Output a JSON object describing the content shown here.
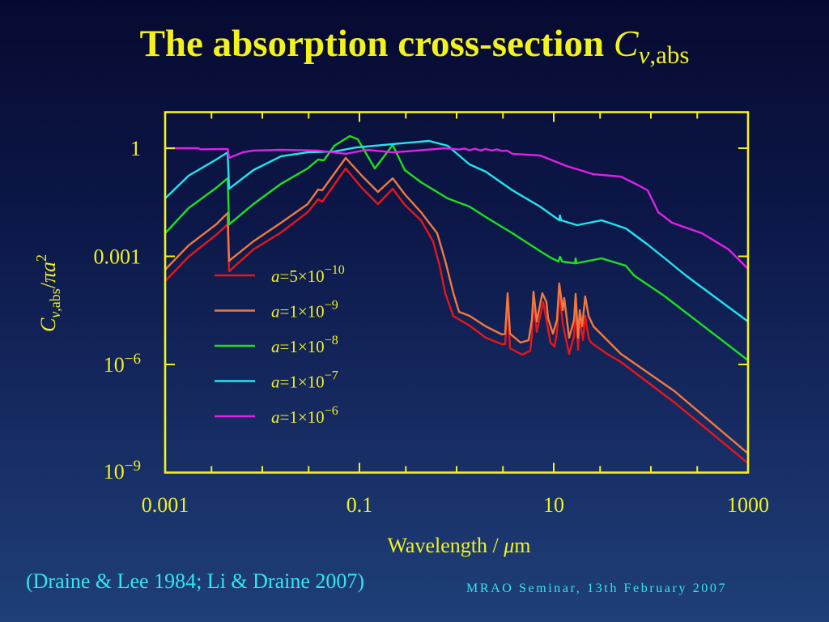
{
  "title": {
    "text": "The absorption cross-section",
    "symbol": "C",
    "subscript_greek": "ν",
    "subscript_rest": ",abs"
  },
  "citation": "(Draine & Lee 1984; Li & Draine 2007)",
  "footer": "MRAO Seminar, 13th February 2007",
  "colors": {
    "background_top": "#070a30",
    "background_bottom": "#1f3f78",
    "axes": "#f2f21e",
    "text": "#f2f21e",
    "citation": "#33e6f0"
  },
  "chart_data": {
    "type": "line",
    "title": "The absorption cross-section C_ν,abs",
    "xlabel": "Wavelength / μm",
    "xlabel_parts": {
      "text": "Wavelength / ",
      "greek": "μ",
      "unit": "m"
    },
    "ylabel": "C_ν,abs/πa^2",
    "ylabel_parts": {
      "symbol": "C",
      "sub_greek": "ν",
      "sub_rest": ",abs",
      "slash": "/",
      "pi_a": "πa",
      "sup": "2"
    },
    "xscale": "log",
    "yscale": "log",
    "xlim": [
      0.001,
      1000
    ],
    "ylim": [
      1e-09,
      10
    ],
    "grid": false,
    "legend_position": "center-left (inside plot)",
    "xticks_major": [
      0.001,
      0.1,
      10,
      1000
    ],
    "xticks_minor": [
      0.003,
      0.01,
      0.03,
      0.3,
      1,
      3,
      30,
      100,
      300
    ],
    "yticks": [
      1,
      0.001,
      1e-06
    ],
    "xtick_labels": [
      {
        "value": 0.001,
        "label": "0.001"
      },
      {
        "value": 0.1,
        "label": "0.1"
      },
      {
        "value": 10,
        "label": "10"
      },
      {
        "value": 1000,
        "label": "1000"
      }
    ],
    "ytick_labels": [
      {
        "value": 1,
        "base": "1",
        "exp": ""
      },
      {
        "value": 0.001,
        "base": "0.001",
        "exp": ""
      },
      {
        "value": 1e-06,
        "base": "10",
        "exp": "−6"
      },
      {
        "value": 1e-09,
        "base": "10",
        "exp": "−9"
      }
    ],
    "series": [
      {
        "name": "a=5×10^-10",
        "label_var": "a",
        "label_value": "=5×10",
        "label_exp": "−10",
        "color": "#e8161a",
        "points": [
          [
            0.001,
            0.000206
          ],
          [
            0.00174,
            0.000975
          ],
          [
            0.00335,
            0.00394
          ],
          [
            0.0044,
            0.00772
          ],
          [
            0.00455,
            0.000384
          ],
          [
            0.0081,
            0.00155
          ],
          [
            0.0156,
            0.0046
          ],
          [
            0.0293,
            0.0168
          ],
          [
            0.0376,
            0.0384
          ],
          [
            0.0414,
            0.0329
          ],
          [
            0.0722,
            0.274
          ],
          [
            0.106,
            0.0793
          ],
          [
            0.155,
            0.0281
          ],
          [
            0.22,
            0.0752
          ],
          [
            0.293,
            0.0267
          ],
          [
            0.43,
            0.01
          ],
          [
            0.573,
            0.0026
          ],
          [
            0.668,
            0.000552
          ],
          [
            0.764,
            9.5e-05
          ],
          [
            0.927,
            2.2e-05
          ],
          [
            1.36,
            1.2e-05
          ],
          [
            2.0,
            5.52e-06
          ],
          [
            2.93,
            3.65e-06
          ],
          [
            3.16,
            3.65e-06
          ],
          [
            3.35,
            6.28e-05
          ],
          [
            3.55,
            2.81e-06
          ],
          [
            4.73,
            1.86e-06
          ],
          [
            5.73,
            2.41e-06
          ],
          [
            5.96,
            6.12e-06
          ],
          [
            6.19,
            6.28e-05
          ],
          [
            6.68,
            7.92e-06
          ],
          [
            7.79,
            5.37e-05
          ],
          [
            9.26,
            4.05e-06
          ],
          [
            10.2,
            3.12e-06
          ],
          [
            10.8,
            7.92e-06
          ],
          [
            11.4,
            0.000105
          ],
          [
            12.4,
            1.33e-05
          ],
          [
            13.6,
            4.05e-06
          ],
          [
            14.4,
            1.96e-06
          ],
          [
            16.2,
            6.12e-06
          ],
          [
            16.8,
            4.37e-05
          ],
          [
            17.8,
            2.54e-06
          ],
          [
            18.5,
            1.91e-05
          ],
          [
            20.0,
            4.72e-06
          ],
          [
            21.1,
            2.23e-05
          ],
          [
            22.8,
            5.52e-06
          ],
          [
            24.2,
            4.05e-06
          ],
          [
            35.5,
            1.96e-06
          ],
          [
            49.2,
            1.17e-06
          ],
          [
            175,
            8.79e-08
          ],
          [
            1000,
            1.81e-09
          ]
        ]
      },
      {
        "name": "a=1×10^-9",
        "label_var": "a",
        "label_value": "=1×10",
        "label_exp": "−9",
        "color": "#f2793e",
        "points": [
          [
            0.001,
            0.000426
          ],
          [
            0.00174,
            0.002
          ],
          [
            0.00335,
            0.0077
          ],
          [
            0.0044,
            0.0159
          ],
          [
            0.00455,
            0.00075
          ],
          [
            0.0081,
            0.0026
          ],
          [
            0.0156,
            0.00857
          ],
          [
            0.0293,
            0.0281
          ],
          [
            0.0376,
            0.0714
          ],
          [
            0.0414,
            0.0678
          ],
          [
            0.0722,
            0.538
          ],
          [
            0.106,
            0.172
          ],
          [
            0.155,
            0.0612
          ],
          [
            0.22,
            0.147
          ],
          [
            0.293,
            0.0524
          ],
          [
            0.43,
            0.0168
          ],
          [
            0.631,
            0.00437
          ],
          [
            0.764,
            0.00075
          ],
          [
            0.927,
            9.5e-05
          ],
          [
            1.06,
            2.89e-05
          ],
          [
            1.36,
            2.23e-05
          ],
          [
            2.0,
            1.14e-05
          ],
          [
            2.93,
            6.78e-06
          ],
          [
            3.16,
            7.14e-06
          ],
          [
            3.35,
            9.5e-05
          ],
          [
            3.55,
            7.14e-06
          ],
          [
            4.55,
            4.05e-06
          ],
          [
            5.52,
            4.72e-06
          ],
          [
            5.96,
            1.72e-05
          ],
          [
            6.19,
            0.000105
          ],
          [
            6.68,
            1.55e-05
          ],
          [
            7.63,
            9.5e-05
          ],
          [
            8.41,
            5.37e-05
          ],
          [
            8.75,
            1.91e-05
          ],
          [
            9.81,
            7.14e-06
          ],
          [
            10.8,
            1.72e-05
          ],
          [
            11.4,
            0.000177
          ],
          [
            12.4,
            3.2e-05
          ],
          [
            12.8,
            6.97e-05
          ],
          [
            14.4,
            5.52e-06
          ],
          [
            16.2,
            1.72e-05
          ],
          [
            16.8,
            9e-05
          ],
          [
            17.8,
            5.52e-06
          ],
          [
            18.5,
            3.2e-05
          ],
          [
            19.6,
            1.14e-05
          ],
          [
            21.1,
            7.72e-05
          ],
          [
            22.8,
            2.23e-05
          ],
          [
            25.6,
            1.14e-05
          ],
          [
            35.5,
            4.72e-06
          ],
          [
            49.2,
            1.96e-06
          ],
          [
            175,
            1.81e-07
          ],
          [
            1000,
            3.37e-09
          ]
        ]
      },
      {
        "name": "a=1×10^-8",
        "label_var": "a",
        "label_value": "=1×10",
        "label_exp": "−8",
        "color": "#1ee01e",
        "points": [
          [
            0.001,
            0.00437
          ],
          [
            0.00174,
            0.0217
          ],
          [
            0.00335,
            0.0793
          ],
          [
            0.0044,
            0.147
          ],
          [
            0.00455,
            0.0077
          ],
          [
            0.0081,
            0.0281
          ],
          [
            0.0156,
            0.103
          ],
          [
            0.0293,
            0.274
          ],
          [
            0.0376,
            0.485
          ],
          [
            0.043,
            0.46
          ],
          [
            0.0552,
            1.17
          ],
          [
            0.0794,
            2.17
          ],
          [
            0.0963,
            1.77
          ],
          [
            0.144,
            0.274
          ],
          [
            0.22,
            1.23
          ],
          [
            0.293,
            0.247
          ],
          [
            0.43,
            0.114
          ],
          [
            0.81,
            0.0404
          ],
          [
            1.36,
            0.024
          ],
          [
            2.0,
            0.0123
          ],
          [
            3.76,
            0.00437
          ],
          [
            7.22,
            0.0014
          ],
          [
            9.26,
            0.000925
          ],
          [
            11.2,
            0.000714
          ],
          [
            11.6,
            0.000975
          ],
          [
            12.2,
            0.000714
          ],
          [
            16.5,
            0.000644
          ],
          [
            16.8,
            0.000879
          ],
          [
            17.1,
            0.000644
          ],
          [
            31.0,
            0.000879
          ],
          [
            55.2,
            0.000552
          ],
          [
            66.8,
            0.000296
          ],
          [
            136,
            8.13e-05
          ],
          [
            1000,
            1.3e-06
          ]
        ]
      },
      {
        "name": "a=1×10^-7",
        "label_var": "a",
        "label_value": "=1×10",
        "label_exp": "−7",
        "color": "#22e4f0",
        "points": [
          [
            0.001,
            0.0404
          ],
          [
            0.00174,
            0.172
          ],
          [
            0.00335,
            0.485
          ],
          [
            0.0044,
            0.77
          ],
          [
            0.00455,
            0.075
          ],
          [
            0.0081,
            0.247
          ],
          [
            0.0156,
            0.6
          ],
          [
            0.0293,
            0.77
          ],
          [
            0.0552,
            0.81
          ],
          [
            0.0927,
            1.05
          ],
          [
            0.22,
            1.3
          ],
          [
            0.521,
            1.59
          ],
          [
            0.81,
            1.17
          ],
          [
            1.36,
            0.355
          ],
          [
            2.0,
            0.223
          ],
          [
            3.76,
            0.068
          ],
          [
            7.22,
            0.0241
          ],
          [
            11.4,
            0.01
          ],
          [
            11.6,
            0.0136
          ],
          [
            11.9,
            0.01
          ],
          [
            17.4,
            0.00733
          ],
          [
            31.0,
            0.01
          ],
          [
            55.2,
            0.00596
          ],
          [
            92.6,
            0.00212
          ],
          [
            136,
            0.000925
          ],
          [
            228,
            0.000296
          ],
          [
            1000,
            1.55e-05
          ]
        ]
      },
      {
        "name": "a=1×10^-6",
        "label_var": "a",
        "label_value": "=1×10",
        "label_exp": "−6",
        "color": "#e020e8",
        "points": [
          [
            0.001,
            1.0
          ],
          [
            0.0022,
            1.0
          ],
          [
            0.0023,
            0.93
          ],
          [
            0.0044,
            0.95
          ],
          [
            0.00455,
            0.54
          ],
          [
            0.0063,
            0.77
          ],
          [
            0.0081,
            0.86
          ],
          [
            0.0156,
            0.9
          ],
          [
            0.0376,
            0.86
          ],
          [
            0.0722,
            0.7
          ],
          [
            0.119,
            0.9
          ],
          [
            0.22,
            0.77
          ],
          [
            0.293,
            0.81
          ],
          [
            0.764,
            1.0
          ],
          [
            1.06,
            0.92
          ],
          [
            1.2,
            0.98
          ],
          [
            1.36,
            0.88
          ],
          [
            1.55,
            0.97
          ],
          [
            1.75,
            0.87
          ],
          [
            2.0,
            0.95
          ],
          [
            2.3,
            0.86
          ],
          [
            2.6,
            0.93
          ],
          [
            2.93,
            0.84
          ],
          [
            3.3,
            0.86
          ],
          [
            3.76,
            0.7
          ],
          [
            7.22,
            0.63
          ],
          [
            13.6,
            0.32
          ],
          [
            25.6,
            0.19
          ],
          [
            49.2,
            0.163
          ],
          [
            72.2,
            0.0975
          ],
          [
            92.6,
            0.068
          ],
          [
            119,
            0.0168
          ],
          [
            165,
            0.00857
          ],
          [
            335,
            0.00437
          ],
          [
            631,
            0.00155
          ],
          [
            1000,
            0.000449
          ]
        ]
      }
    ]
  }
}
